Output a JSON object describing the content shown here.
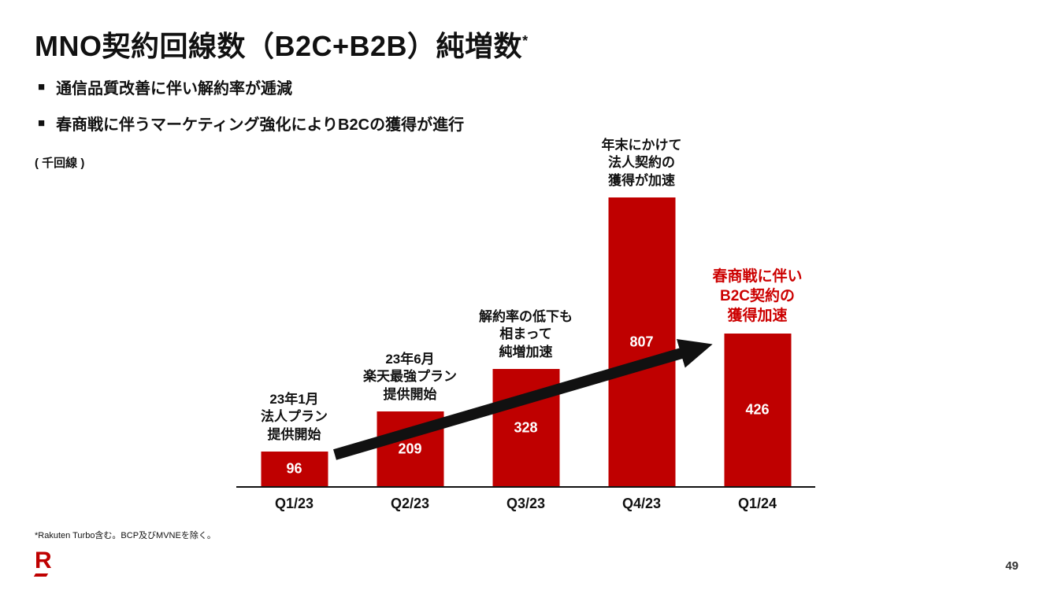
{
  "slide": {
    "title": "MNO契約回線数（B2C+B2B）純増数",
    "title_asterisk": "*",
    "bullets": [
      "通信品質改善に伴い解約率が逓減",
      "春商戦に伴うマーケティング強化によりB2Cの獲得が進行"
    ],
    "unit_label": "( 千回線 )",
    "footnote": "*Rakuten Turbo含む。BCP及びMVNEを除く。",
    "page_number": "49"
  },
  "colors": {
    "bar": "#BF0000",
    "accent_text": "#CC0000",
    "text": "#111111",
    "arrow": "#111111"
  },
  "chart_data": {
    "type": "bar",
    "title": "MNO契約回線数（B2C+B2B）純増数",
    "unit": "千回線",
    "categories": [
      "Q1/23",
      "Q2/23",
      "Q3/23",
      "Q4/23",
      "Q1/24"
    ],
    "values": [
      96,
      209,
      328,
      807,
      426
    ],
    "ylim": [
      0,
      900
    ],
    "grid": false,
    "legend": "none",
    "annotations": [
      {
        "category": "Q1/23",
        "lines": [
          "23年1月",
          "法人プラン",
          "提供開始"
        ],
        "color": "black"
      },
      {
        "category": "Q2/23",
        "lines": [
          "23年6月",
          "楽天最強プラン",
          "提供開始"
        ],
        "color": "black"
      },
      {
        "category": "Q3/23",
        "lines": [
          "解約率の低下も",
          "相まって",
          "純増加速"
        ],
        "color": "black"
      },
      {
        "category": "Q4/23",
        "lines": [
          "年末にかけて",
          "法人契約の",
          "獲得が加速"
        ],
        "color": "black"
      },
      {
        "category": "Q1/24",
        "lines": [
          "春商戦に伴い",
          "B2C契約の",
          "獲得加速"
        ],
        "color": "red"
      }
    ],
    "arrow": {
      "from_category": "Q1/23",
      "to_category": "Q1/24",
      "direction": "up-right"
    }
  }
}
